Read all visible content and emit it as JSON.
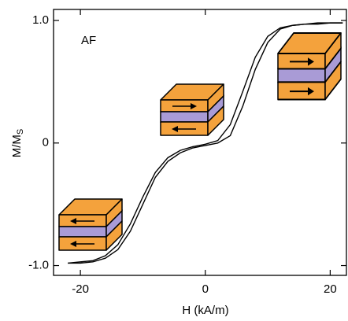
{
  "chart_data": {
    "type": "line",
    "annotation": "AF",
    "x_label": "H (kA/m)",
    "y_label": "M/M",
    "y_label_sub": "S",
    "x": [
      -22,
      -20,
      -18,
      -16,
      -14,
      -12,
      -10,
      -8,
      -6,
      -4,
      -2,
      0,
      2,
      4,
      6,
      8,
      10,
      12,
      14,
      16,
      18,
      20,
      22
    ],
    "series": [
      {
        "color": "#000000",
        "values": [
          -0.98,
          -0.98,
          -0.97,
          -0.94,
          -0.87,
          -0.72,
          -0.5,
          -0.28,
          -0.15,
          -0.08,
          -0.04,
          -0.02,
          0.0,
          0.06,
          0.3,
          0.6,
          0.82,
          0.93,
          0.96,
          0.97,
          0.97,
          0.98,
          0.98
        ]
      },
      {
        "color": "#000000",
        "values": [
          -0.98,
          -0.97,
          -0.96,
          -0.92,
          -0.83,
          -0.66,
          -0.44,
          -0.24,
          -0.12,
          -0.06,
          -0.03,
          -0.01,
          0.02,
          0.15,
          0.42,
          0.7,
          0.87,
          0.94,
          0.96,
          0.97,
          0.98,
          0.98,
          0.98
        ]
      }
    ],
    "xlim": [
      -24.3,
      22.6
    ],
    "ylim": [
      -1.08,
      1.09
    ],
    "xticks": [
      -20,
      0,
      20
    ],
    "yticks": [
      {
        "value": 1,
        "label": "1.0"
      },
      0,
      {
        "value": -1,
        "label": "-1.0"
      }
    ]
  }
}
